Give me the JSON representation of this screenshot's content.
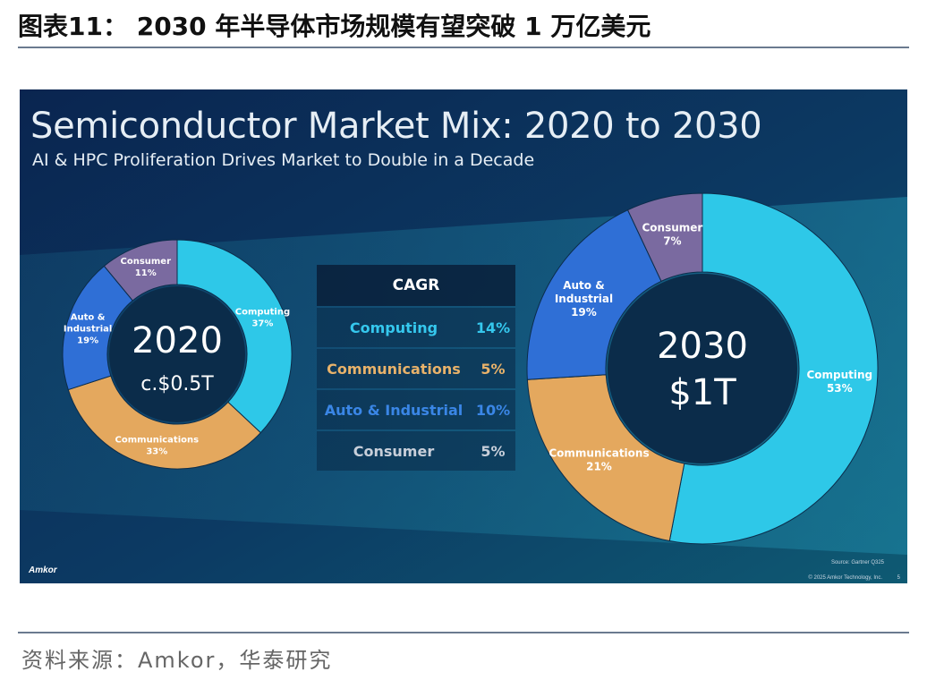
{
  "figure": {
    "title": "图表11：  2030 年半导体市场规模有望突破 1 万亿美元",
    "source": "资料来源：Amkor，华泰研究"
  },
  "slide": {
    "title": "Semiconductor Market Mix: 2020 to 2030",
    "subtitle": "AI & HPC Proliferation Drives Market to Double in a Decade",
    "logo": "Amkor",
    "source_note": "Source: Gartner Q325",
    "copyright": "© 2025 Amkor Technology, Inc.",
    "page": "5",
    "colors": {
      "background_dark": "#0a2550",
      "background_teal": "#0e5a73",
      "computing": "#2ec8e8",
      "communications": "#e4a85e",
      "auto_industrial": "#2f6fd6",
      "consumer": "#7a6aa0",
      "donut_center": "#0b2c4a"
    }
  },
  "cagr_table": {
    "header": "CAGR",
    "rows": [
      {
        "segment": "Computing",
        "cagr": "14%",
        "color": "#35c8ee"
      },
      {
        "segment": "Communications",
        "cagr": "5%",
        "color": "#e8b26a"
      },
      {
        "segment": "Auto & Industrial",
        "cagr": "10%",
        "color": "#3a86e6"
      },
      {
        "segment": "Consumer",
        "cagr": "5%",
        "color": "#c8cfda"
      }
    ]
  },
  "chart_data": [
    {
      "type": "pie",
      "center_label_line1": "2020",
      "center_label_line2": "c.$0.5T",
      "slices": [
        {
          "label": "Computing",
          "value": 37,
          "value_label": "37%"
        },
        {
          "label": "Communications",
          "value": 33,
          "value_label": "33%"
        },
        {
          "label": "Auto & Industrial",
          "value": 19,
          "value_label": "19%"
        },
        {
          "label": "Consumer",
          "value": 11,
          "value_label": "11%"
        }
      ]
    },
    {
      "type": "pie",
      "center_label_line1": "2030",
      "center_label_line2": "$1T",
      "slices": [
        {
          "label": "Computing",
          "value": 53,
          "value_label": "53%"
        },
        {
          "label": "Communications",
          "value": 21,
          "value_label": "21%"
        },
        {
          "label": "Auto & Industrial",
          "value": 19,
          "value_label": "19%"
        },
        {
          "label": "Consumer",
          "value": 7,
          "value_label": "7%"
        }
      ]
    }
  ]
}
